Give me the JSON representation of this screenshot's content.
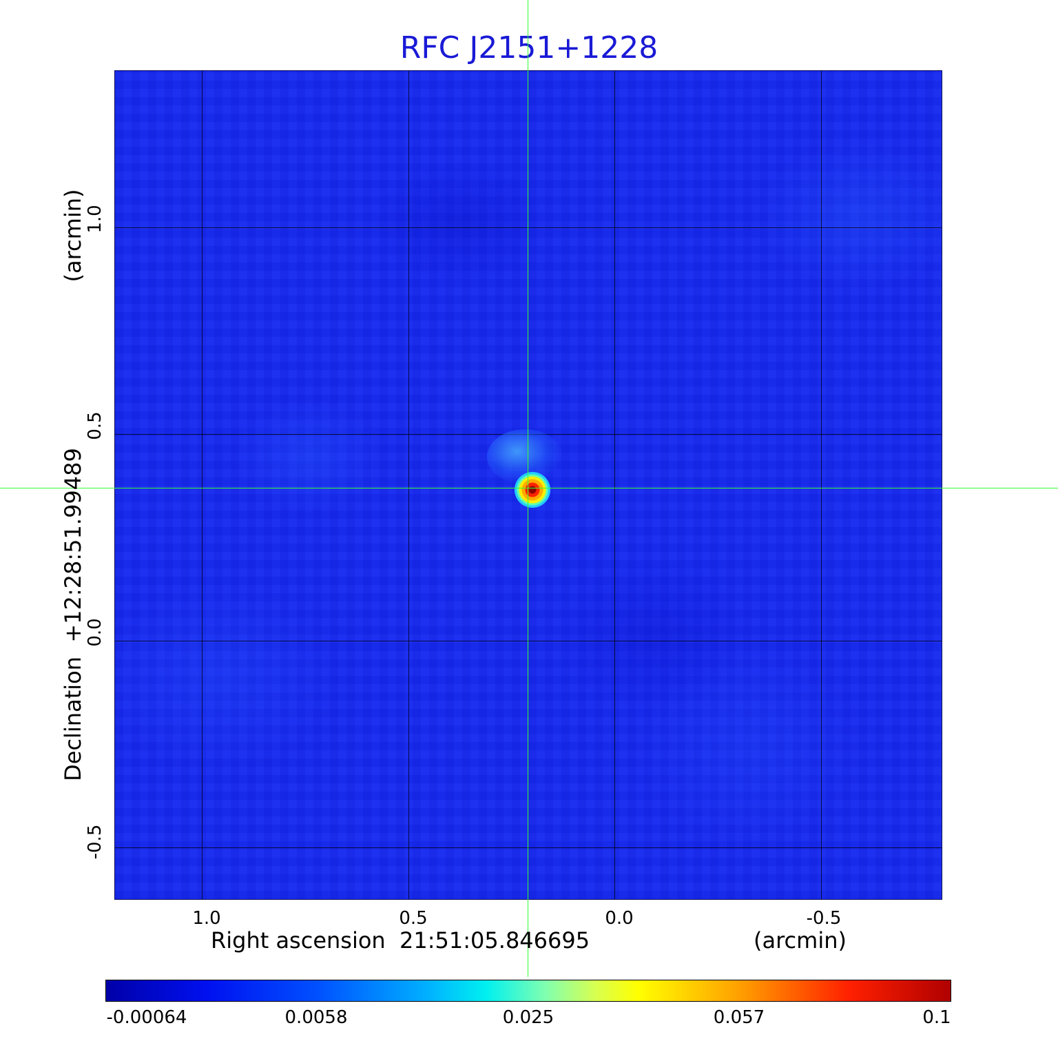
{
  "title": "RFC J2151+1228",
  "x_axis": {
    "label": "Right ascension  21:51:05.846695",
    "unit": "(arcmin)",
    "ticks": [
      "1.0",
      "0.5",
      "0.0",
      "-0.5"
    ]
  },
  "y_axis": {
    "label": "Declination  +12:28:51.99489",
    "unit": "(arcmin)",
    "ticks": [
      "1.0",
      "0.5",
      "0.0",
      "-0.5"
    ]
  },
  "colorbar": {
    "ticks": [
      "-0.00064",
      "0.0058",
      "0.025",
      "0.057",
      "0.1"
    ],
    "colormap": "jet"
  },
  "colors": {
    "title": "#1a1ad6",
    "crosshair": "#33ff33",
    "background_map": "#1528f0"
  }
}
